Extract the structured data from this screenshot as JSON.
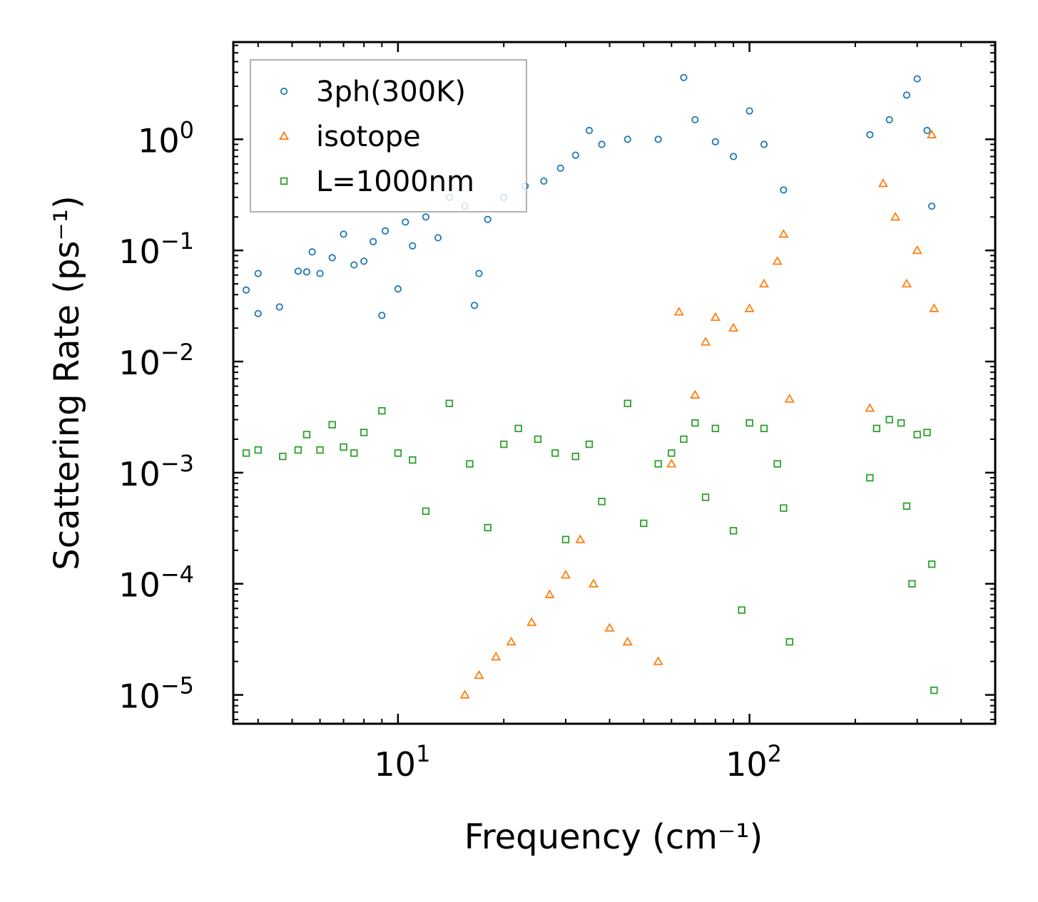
{
  "chart_data": {
    "type": "scatter",
    "xscale": "log",
    "yscale": "log",
    "xlim": [
      3.4,
      500
    ],
    "ylim": [
      5.5e-06,
      7.5
    ],
    "xlabel": "Frequency (cm⁻¹)",
    "ylabel": "Scattering Rate (ps⁻¹)",
    "x_ticks": [
      {
        "base": "10",
        "exp": "1"
      },
      {
        "base": "10",
        "exp": "2"
      }
    ],
    "y_ticks": [
      {
        "base": "10",
        "exp": "0"
      },
      {
        "base": "10",
        "exp": "−1"
      },
      {
        "base": "10",
        "exp": "−2"
      },
      {
        "base": "10",
        "exp": "−3"
      },
      {
        "base": "10",
        "exp": "−4"
      },
      {
        "base": "10",
        "exp": "−5"
      }
    ],
    "legend_position": "top-left",
    "series": [
      {
        "name": "3ph(300K)",
        "marker": "circle",
        "color": "#1f77b4",
        "points": [
          [
            3.7,
            0.044
          ],
          [
            4.0,
            0.027
          ],
          [
            4.0,
            0.062
          ],
          [
            4.6,
            0.031
          ],
          [
            5.2,
            0.065
          ],
          [
            5.5,
            0.064
          ],
          [
            5.7,
            0.097
          ],
          [
            6.0,
            0.062
          ],
          [
            6.5,
            0.086
          ],
          [
            7.0,
            0.14
          ],
          [
            7.5,
            0.074
          ],
          [
            8.0,
            0.08
          ],
          [
            8.5,
            0.12
          ],
          [
            9.0,
            0.026
          ],
          [
            9.2,
            0.15
          ],
          [
            10.0,
            0.045
          ],
          [
            10.5,
            0.18
          ],
          [
            11.0,
            0.11
          ],
          [
            12.0,
            0.2
          ],
          [
            13.0,
            0.13
          ],
          [
            14.0,
            0.3
          ],
          [
            15.5,
            0.25
          ],
          [
            16.5,
            0.032
          ],
          [
            17.0,
            0.062
          ],
          [
            18.0,
            0.19
          ],
          [
            20.0,
            0.3
          ],
          [
            23.0,
            0.38
          ],
          [
            26.0,
            0.42
          ],
          [
            29.0,
            0.55
          ],
          [
            32.0,
            0.72
          ],
          [
            35.0,
            1.2
          ],
          [
            38.0,
            0.9
          ],
          [
            45.0,
            1.0
          ],
          [
            55.0,
            1.0
          ],
          [
            65.0,
            3.6
          ],
          [
            70.0,
            1.5
          ],
          [
            80.0,
            0.95
          ],
          [
            90.0,
            0.7
          ],
          [
            100.0,
            1.8
          ],
          [
            110.0,
            0.9
          ],
          [
            125.0,
            0.35
          ],
          [
            220.0,
            1.1
          ],
          [
            250.0,
            1.5
          ],
          [
            280.0,
            2.5
          ],
          [
            300.0,
            3.5
          ],
          [
            320.0,
            1.2
          ],
          [
            330.0,
            0.25
          ]
        ]
      },
      {
        "name": "isotope",
        "marker": "triangle",
        "color": "#ff7f0e",
        "points": [
          [
            15.5,
            1e-05
          ],
          [
            17.0,
            1.5e-05
          ],
          [
            19.0,
            2.2e-05
          ],
          [
            21.0,
            3e-05
          ],
          [
            24.0,
            4.5e-05
          ],
          [
            27.0,
            8e-05
          ],
          [
            30.0,
            0.00012
          ],
          [
            33.0,
            0.00025
          ],
          [
            36.0,
            0.0001
          ],
          [
            40.0,
            4e-05
          ],
          [
            45.0,
            3e-05
          ],
          [
            55.0,
            2e-05
          ],
          [
            60.0,
            0.0012
          ],
          [
            63.0,
            0.028
          ],
          [
            70.0,
            0.005
          ],
          [
            75.0,
            0.015
          ],
          [
            80.0,
            0.025
          ],
          [
            90.0,
            0.02
          ],
          [
            100.0,
            0.03
          ],
          [
            110.0,
            0.05
          ],
          [
            120.0,
            0.08
          ],
          [
            125.0,
            0.14
          ],
          [
            130.0,
            0.0046
          ],
          [
            220.0,
            0.0038
          ],
          [
            240.0,
            0.4
          ],
          [
            260.0,
            0.2
          ],
          [
            280.0,
            0.05
          ],
          [
            300.0,
            0.1
          ],
          [
            330.0,
            1.1
          ],
          [
            335.0,
            0.03
          ]
        ]
      },
      {
        "name": "L=1000nm",
        "marker": "square",
        "color": "#2ca02c",
        "points": [
          [
            3.7,
            0.0015
          ],
          [
            4.0,
            0.0016
          ],
          [
            4.7,
            0.0014
          ],
          [
            5.2,
            0.0016
          ],
          [
            5.5,
            0.0022
          ],
          [
            6.0,
            0.0016
          ],
          [
            6.5,
            0.0027
          ],
          [
            7.0,
            0.0017
          ],
          [
            7.5,
            0.0015
          ],
          [
            8.0,
            0.0023
          ],
          [
            9.0,
            0.0036
          ],
          [
            10.0,
            0.0015
          ],
          [
            11.0,
            0.0013
          ],
          [
            12.0,
            0.00045
          ],
          [
            14.0,
            0.0042
          ],
          [
            16.0,
            0.0012
          ],
          [
            18.0,
            0.00032
          ],
          [
            20.0,
            0.0018
          ],
          [
            22.0,
            0.0025
          ],
          [
            25.0,
            0.002
          ],
          [
            28.0,
            0.0015
          ],
          [
            30.0,
            0.00025
          ],
          [
            32.0,
            0.0014
          ],
          [
            35.0,
            0.0018
          ],
          [
            38.0,
            0.00055
          ],
          [
            45.0,
            0.0042
          ],
          [
            50.0,
            0.00035
          ],
          [
            55.0,
            0.0012
          ],
          [
            60.0,
            0.0015
          ],
          [
            65.0,
            0.002
          ],
          [
            70.0,
            0.0028
          ],
          [
            75.0,
            0.0006
          ],
          [
            80.0,
            0.0025
          ],
          [
            90.0,
            0.0003
          ],
          [
            95.0,
            5.8e-05
          ],
          [
            100.0,
            0.0028
          ],
          [
            110.0,
            0.0025
          ],
          [
            120.0,
            0.0012
          ],
          [
            125.0,
            0.00048
          ],
          [
            130.0,
            3e-05
          ],
          [
            220.0,
            0.0009
          ],
          [
            230.0,
            0.0025
          ],
          [
            250.0,
            0.003
          ],
          [
            270.0,
            0.0028
          ],
          [
            280.0,
            0.0005
          ],
          [
            290.0,
            0.0001
          ],
          [
            300.0,
            0.0022
          ],
          [
            320.0,
            0.0023
          ],
          [
            330.0,
            0.00015
          ],
          [
            335.0,
            1.1e-05
          ]
        ]
      }
    ]
  }
}
